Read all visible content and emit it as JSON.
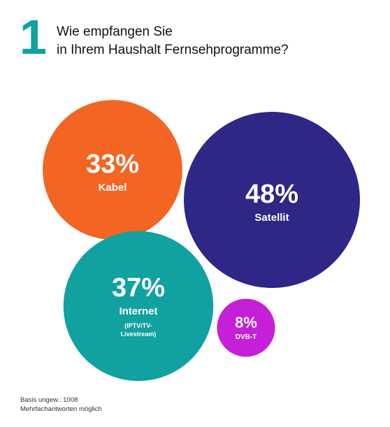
{
  "header": {
    "number": "1",
    "title_line1": "Wie empfangen Sie",
    "title_line2": "in Ihrem Haushalt Fernsehprogramme?"
  },
  "colors": {
    "accent": "#10a2a2",
    "kabel": "#f26522",
    "satellit": "#2e2785",
    "internet": "#11a1a1",
    "dvbt": "#c51fd8"
  },
  "chart_data": {
    "type": "bubble",
    "unit": "%",
    "items": [
      {
        "label": "Kabel",
        "value": 33,
        "value_label": "33%",
        "sublabel": "",
        "color": "#f26522"
      },
      {
        "label": "Satellit",
        "value": 48,
        "value_label": "48%",
        "sublabel": "",
        "color": "#2e2785"
      },
      {
        "label": "Internet",
        "value": 37,
        "value_label": "37%",
        "sublabel": "(IPTV/TV-\nLivestream)",
        "color": "#11a1a1"
      },
      {
        "label": "DVB-T",
        "value": 8,
        "value_label": "8%",
        "sublabel": "",
        "color": "#c51fd8"
      }
    ]
  },
  "footer": {
    "line1": "Basis ungew.: 1008",
    "line2": "Mehrfachantworten möglich"
  }
}
